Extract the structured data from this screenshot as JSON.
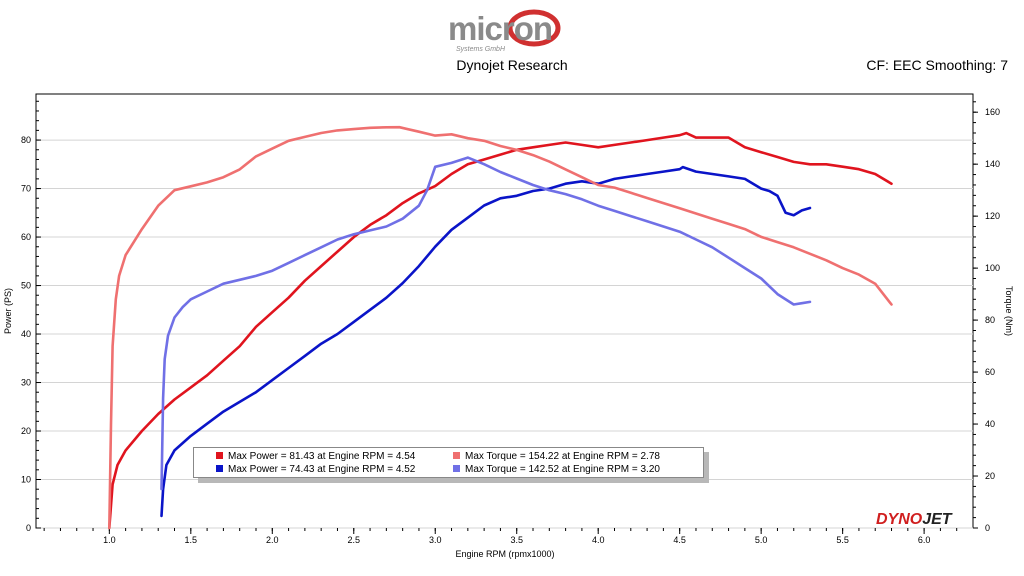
{
  "header": {
    "logo_text": "micron",
    "logo_subtext": "Systems GmbH",
    "title": "Dynojet Research",
    "cf_text": "CF: EEC Smoothing: 7"
  },
  "brand": {
    "dyno": "DYNO",
    "jet": "JET"
  },
  "chart_data": {
    "type": "line",
    "xlabel": "Engine RPM (rpmx1000)",
    "ylabel": "Power (PS)",
    "y2label": "Torque (Nm)",
    "xlim": [
      0.55,
      6.3
    ],
    "ylim": [
      0,
      89.5
    ],
    "y2lim": [
      0,
      167
    ],
    "x_ticks": [
      "1.0",
      "1.5",
      "2.0",
      "2.5",
      "3.0",
      "3.5",
      "4.0",
      "4.5",
      "5.0",
      "5.5",
      "6.0"
    ],
    "x_tick_values": [
      1.0,
      1.5,
      2.0,
      2.5,
      3.0,
      3.5,
      4.0,
      4.5,
      5.0,
      5.5,
      6.0
    ],
    "y_ticks": [
      "0",
      "10",
      "20",
      "30",
      "40",
      "50",
      "60",
      "70",
      "80"
    ],
    "y_tick_values": [
      0,
      10,
      20,
      30,
      40,
      50,
      60,
      70,
      80
    ],
    "y2_ticks": [
      "0",
      "20",
      "40",
      "60",
      "80",
      "100",
      "120",
      "140",
      "160"
    ],
    "y2_tick_values": [
      0,
      20,
      40,
      60,
      80,
      100,
      120,
      140,
      160
    ],
    "legend": [
      {
        "text": "Max Power = 81.43 at Engine RPM = 4.54",
        "color": "#e0141e"
      },
      {
        "text": "Max Torque = 154.22 at Engine RPM = 2.78",
        "color": "#ef7070"
      },
      {
        "text": "Max Power = 74.43 at Engine RPM = 4.52",
        "color": "#0a14c8"
      },
      {
        "text": "Max Torque = 142.52 at Engine RPM = 3.20",
        "color": "#7070e6"
      }
    ],
    "series": [
      {
        "name": "Power run 1",
        "axis": "left",
        "color": "#e0141e",
        "x": [
          1.0,
          1.02,
          1.05,
          1.1,
          1.2,
          1.3,
          1.4,
          1.5,
          1.6,
          1.7,
          1.8,
          1.9,
          2.0,
          2.1,
          2.2,
          2.3,
          2.4,
          2.5,
          2.6,
          2.7,
          2.8,
          2.9,
          3.0,
          3.1,
          3.2,
          3.3,
          3.4,
          3.5,
          3.6,
          3.7,
          3.8,
          3.9,
          4.0,
          4.1,
          4.2,
          4.3,
          4.4,
          4.5,
          4.54,
          4.6,
          4.7,
          4.8,
          4.9,
          5.0,
          5.1,
          5.2,
          5.3,
          5.4,
          5.5,
          5.6,
          5.7,
          5.8
        ],
        "y": [
          0,
          9,
          13,
          16,
          20,
          23.5,
          26.5,
          29,
          31.5,
          34.5,
          37.5,
          41.5,
          44.5,
          47.5,
          51,
          54,
          57,
          60,
          62.5,
          64.5,
          67,
          69,
          70.5,
          73,
          75,
          76,
          77,
          78,
          78.5,
          79,
          79.5,
          79,
          78.5,
          79,
          79.5,
          80,
          80.5,
          81,
          81.43,
          80.5,
          80.5,
          80.5,
          78.5,
          77.5,
          76.5,
          75.5,
          75,
          75,
          74.5,
          74,
          73,
          71
        ]
      },
      {
        "name": "Power run 2",
        "axis": "left",
        "color": "#0a14c8",
        "x": [
          1.32,
          1.33,
          1.35,
          1.4,
          1.5,
          1.6,
          1.7,
          1.8,
          1.9,
          2.0,
          2.1,
          2.2,
          2.3,
          2.4,
          2.5,
          2.6,
          2.7,
          2.8,
          2.9,
          3.0,
          3.1,
          3.2,
          3.3,
          3.4,
          3.5,
          3.6,
          3.7,
          3.8,
          3.9,
          4.0,
          4.1,
          4.2,
          4.3,
          4.4,
          4.5,
          4.52,
          4.6,
          4.7,
          4.8,
          4.9,
          5.0,
          5.05,
          5.1,
          5.15,
          5.2,
          5.25,
          5.3
        ],
        "y": [
          2.5,
          8,
          13,
          16,
          19,
          21.5,
          24,
          26,
          28,
          30.5,
          33,
          35.5,
          38,
          40,
          42.5,
          45,
          47.5,
          50.5,
          54,
          58,
          61.5,
          64,
          66.5,
          68,
          68.5,
          69.5,
          70,
          71,
          71.5,
          71,
          72,
          72.5,
          73,
          73.5,
          74,
          74.43,
          73.5,
          73,
          72.5,
          72,
          70,
          69.5,
          68.5,
          65,
          64.5,
          65.5,
          66
        ]
      },
      {
        "name": "Torque run 1",
        "axis": "right",
        "color": "#ef7070",
        "x": [
          1.0,
          1.01,
          1.02,
          1.04,
          1.06,
          1.1,
          1.2,
          1.3,
          1.4,
          1.5,
          1.6,
          1.7,
          1.8,
          1.9,
          2.0,
          2.1,
          2.2,
          2.3,
          2.4,
          2.5,
          2.6,
          2.7,
          2.78,
          2.9,
          3.0,
          3.1,
          3.2,
          3.3,
          3.4,
          3.5,
          3.6,
          3.7,
          3.8,
          3.9,
          4.0,
          4.1,
          4.2,
          4.3,
          4.4,
          4.5,
          4.6,
          4.7,
          4.8,
          4.9,
          5.0,
          5.1,
          5.2,
          5.3,
          5.4,
          5.5,
          5.6,
          5.7,
          5.8
        ],
        "y": [
          0,
          40,
          70,
          88,
          97,
          105,
          115,
          124,
          130,
          131.5,
          133,
          135,
          138,
          143,
          146,
          149,
          150.5,
          152,
          153,
          153.5,
          154,
          154.2,
          154.22,
          152.5,
          151,
          151.5,
          150,
          149,
          147,
          145.5,
          143.5,
          141,
          138,
          135,
          132,
          131,
          129,
          127,
          125,
          123,
          121,
          119,
          117,
          115,
          112,
          110,
          108,
          105.5,
          103,
          100,
          97.5,
          94,
          86
        ]
      },
      {
        "name": "Torque run 2",
        "axis": "right",
        "color": "#7070e6",
        "x": [
          1.32,
          1.33,
          1.34,
          1.36,
          1.4,
          1.45,
          1.5,
          1.6,
          1.7,
          1.8,
          1.9,
          2.0,
          2.1,
          2.2,
          2.3,
          2.4,
          2.5,
          2.6,
          2.7,
          2.8,
          2.9,
          2.95,
          3.0,
          3.1,
          3.2,
          3.3,
          3.4,
          3.5,
          3.6,
          3.7,
          3.8,
          3.9,
          4.0,
          4.1,
          4.2,
          4.3,
          4.4,
          4.5,
          4.6,
          4.7,
          4.8,
          4.9,
          5.0,
          5.1,
          5.2,
          5.25,
          5.3
        ],
        "y": [
          15,
          50,
          65,
          74,
          81,
          85,
          88,
          91,
          94,
          95.5,
          97,
          99,
          102,
          105,
          108,
          111,
          113,
          114.5,
          116,
          119,
          124,
          130,
          139,
          140.5,
          142.52,
          140,
          137,
          134.5,
          132,
          130,
          128.5,
          126.5,
          124,
          122,
          120,
          118,
          116,
          114,
          111,
          108,
          104,
          100,
          96,
          90,
          86,
          86.5,
          87
        ]
      }
    ]
  }
}
